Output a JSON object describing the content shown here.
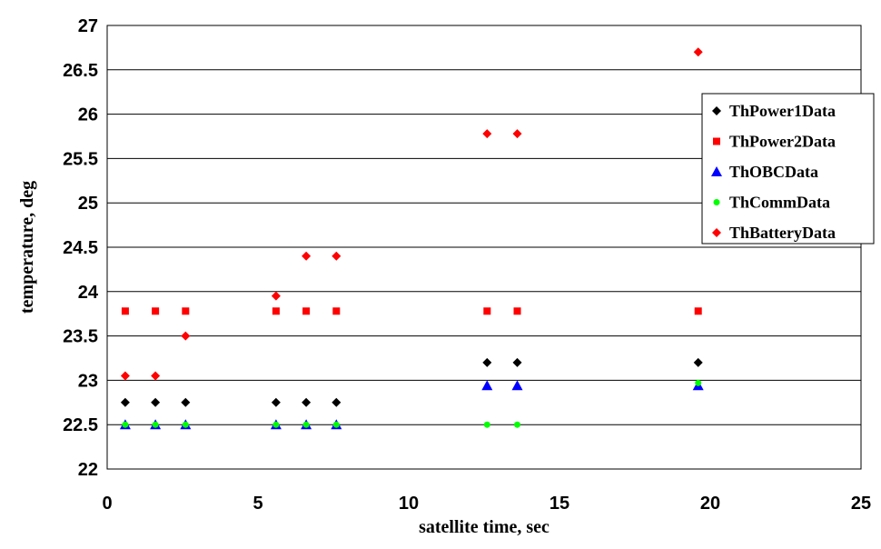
{
  "chart_data": {
    "type": "scatter",
    "title": "",
    "xlabel": "satellite time, sec",
    "ylabel": "temperature, deg",
    "xlim": [
      0,
      25
    ],
    "ylim": [
      22,
      27
    ],
    "xticks": [
      0,
      5,
      10,
      15,
      20,
      25
    ],
    "yticks": [
      22,
      22.5,
      23,
      23.5,
      24,
      24.5,
      25,
      25.5,
      26,
      26.5,
      27
    ],
    "grid": "horizontal",
    "legend_position": "right",
    "series": [
      {
        "name": "ThPower1Data",
        "marker": "diamond",
        "color": "#000000",
        "points": [
          [
            0.6,
            22.75
          ],
          [
            1.6,
            22.75
          ],
          [
            2.6,
            22.75
          ],
          [
            5.6,
            22.75
          ],
          [
            6.6,
            22.75
          ],
          [
            7.6,
            22.75
          ],
          [
            12.6,
            23.2
          ],
          [
            13.6,
            23.2
          ],
          [
            19.6,
            23.2
          ]
        ]
      },
      {
        "name": "ThPower2Data",
        "marker": "square",
        "color": "#ff0000",
        "points": [
          [
            0.6,
            23.78
          ],
          [
            1.6,
            23.78
          ],
          [
            2.6,
            23.78
          ],
          [
            5.6,
            23.78
          ],
          [
            6.6,
            23.78
          ],
          [
            7.6,
            23.78
          ],
          [
            12.6,
            23.78
          ],
          [
            13.6,
            23.78
          ],
          [
            19.6,
            23.78
          ]
        ]
      },
      {
        "name": "ThOBCData",
        "marker": "triangle",
        "color": "#0000ff",
        "points": [
          [
            0.6,
            22.5
          ],
          [
            1.6,
            22.5
          ],
          [
            2.6,
            22.5
          ],
          [
            5.6,
            22.5
          ],
          [
            6.6,
            22.5
          ],
          [
            7.6,
            22.5
          ],
          [
            12.6,
            22.94
          ],
          [
            13.6,
            22.94
          ],
          [
            19.6,
            22.94
          ]
        ]
      },
      {
        "name": "ThCommData",
        "marker": "circle",
        "color": "#00ff00",
        "points": [
          [
            0.6,
            22.5
          ],
          [
            1.6,
            22.5
          ],
          [
            2.6,
            22.5
          ],
          [
            5.6,
            22.5
          ],
          [
            6.6,
            22.5
          ],
          [
            7.6,
            22.5
          ],
          [
            12.6,
            22.5
          ],
          [
            13.6,
            22.5
          ],
          [
            19.6,
            22.97
          ]
        ]
      },
      {
        "name": "ThBatteryData",
        "marker": "diamond",
        "color": "#ff0000",
        "points": [
          [
            0.6,
            23.05
          ],
          [
            1.6,
            23.05
          ],
          [
            2.6,
            23.5
          ],
          [
            5.6,
            23.95
          ],
          [
            6.6,
            24.4
          ],
          [
            7.6,
            24.4
          ],
          [
            12.6,
            25.78
          ],
          [
            13.6,
            25.78
          ],
          [
            19.6,
            26.7
          ]
        ]
      }
    ]
  }
}
